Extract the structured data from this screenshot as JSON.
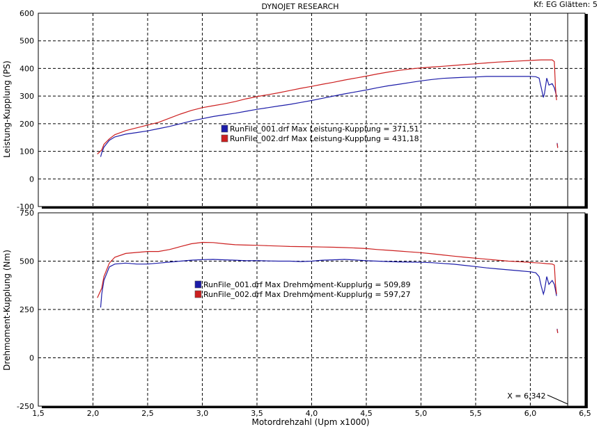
{
  "header": {
    "title": "DYNOJET RESEARCH",
    "settings": "Kf: EG  Glätten: 5"
  },
  "cursor": {
    "label": "X = 6,342",
    "x": 6.342
  },
  "colors": {
    "run1": "#1c1ca8",
    "run2": "#cc1f1f",
    "grid": "#000000",
    "frame": "#000000"
  },
  "chart_data": [
    {
      "type": "line",
      "title": "",
      "xlabel": "",
      "ylabel": "Leistung-Kupplung (PS)",
      "xlim": [
        1.5,
        6.5
      ],
      "ylim": [
        -100,
        600
      ],
      "y_ticks": [
        "600",
        "500",
        "400",
        "300",
        "200",
        "100",
        "0",
        "-100"
      ],
      "y_tick_values": [
        600,
        500,
        400,
        300,
        200,
        100,
        0,
        -100
      ],
      "grid": true,
      "legend": [
        "RunFile_001.drf Max Leistung-Kupplung = 371,51",
        "RunFile_002.drf Max Leistung-Kupplung = 431,18"
      ],
      "series": [
        {
          "name": "RunFile_001.drf",
          "x": [
            2.07,
            2.08,
            2.1,
            2.15,
            2.2,
            2.3,
            2.4,
            2.5,
            2.6,
            2.7,
            2.8,
            2.9,
            3.0,
            3.1,
            3.2,
            3.3,
            3.4,
            3.5,
            3.6,
            3.7,
            3.8,
            3.9,
            4.0,
            4.1,
            4.2,
            4.3,
            4.4,
            4.5,
            4.6,
            4.7,
            4.8,
            4.9,
            5.0,
            5.1,
            5.2,
            5.3,
            5.4,
            5.5,
            5.6,
            5.7,
            5.8,
            5.9,
            6.0,
            6.05,
            6.08,
            6.1,
            6.12,
            6.13,
            6.15,
            6.17,
            6.2,
            6.22,
            6.24
          ],
          "y": [
            80,
            95,
            115,
            140,
            152,
            162,
            168,
            174,
            182,
            190,
            200,
            210,
            218,
            226,
            232,
            238,
            245,
            252,
            258,
            264,
            270,
            277,
            284,
            292,
            300,
            308,
            315,
            322,
            330,
            337,
            343,
            349,
            355,
            360,
            364,
            366,
            368,
            369,
            371,
            371,
            371,
            371,
            371,
            370,
            365,
            330,
            295,
            310,
            365,
            340,
            345,
            330,
            300
          ],
          "extra_x": [
            6.245,
            6.25
          ],
          "extra_y": [
            130,
            115
          ]
        },
        {
          "name": "RunFile_002.drf",
          "x": [
            2.04,
            2.08,
            2.1,
            2.15,
            2.2,
            2.3,
            2.4,
            2.5,
            2.6,
            2.7,
            2.8,
            2.9,
            3.0,
            3.1,
            3.2,
            3.3,
            3.4,
            3.5,
            3.6,
            3.7,
            3.8,
            3.9,
            4.0,
            4.1,
            4.2,
            4.3,
            4.4,
            4.5,
            4.6,
            4.7,
            4.8,
            4.9,
            5.0,
            5.1,
            5.2,
            5.3,
            5.4,
            5.5,
            5.6,
            5.7,
            5.8,
            5.9,
            6.0,
            6.1,
            6.15,
            6.2,
            6.22,
            6.23,
            6.24
          ],
          "y": [
            90,
            105,
            125,
            145,
            160,
            175,
            185,
            195,
            205,
            220,
            235,
            248,
            258,
            265,
            272,
            280,
            290,
            298,
            305,
            312,
            320,
            328,
            335,
            343,
            350,
            358,
            365,
            372,
            380,
            387,
            393,
            398,
            402,
            405,
            408,
            411,
            414,
            417,
            420,
            423,
            425,
            427,
            429,
            431,
            431,
            431,
            425,
            330,
            285
          ],
          "extra_x": [
            6.245,
            6.25
          ],
          "extra_y": [
            128,
            112
          ]
        }
      ]
    },
    {
      "type": "line",
      "title": "",
      "xlabel": "Motordrehzahl (Upm x1000)",
      "ylabel": "Drehmoment-Kupplung (Nm)",
      "xlim": [
        1.5,
        6.5
      ],
      "ylim": [
        -250,
        750
      ],
      "x_ticks": [
        "1,5",
        "2,0",
        "2,5",
        "3,0",
        "3,5",
        "4,0",
        "4,5",
        "5,0",
        "5,5",
        "6,0",
        "6,5"
      ],
      "x_tick_values": [
        1.5,
        2.0,
        2.5,
        3.0,
        3.5,
        4.0,
        4.5,
        5.0,
        5.5,
        6.0,
        6.5
      ],
      "y_ticks": [
        "750",
        "500",
        "250",
        "0",
        "-250"
      ],
      "y_tick_values": [
        750,
        500,
        250,
        0,
        -250
      ],
      "grid": true,
      "legend": [
        "RunFile_001.drf Max Drehmoment-Kupplung = 509,89",
        "RunFile_002.drf Max Drehmoment-Kupplung = 597,27"
      ],
      "series": [
        {
          "name": "RunFile_001.drf",
          "x": [
            2.07,
            2.08,
            2.1,
            2.15,
            2.2,
            2.3,
            2.4,
            2.5,
            2.6,
            2.7,
            2.8,
            2.9,
            3.0,
            3.1,
            3.2,
            3.3,
            3.4,
            3.5,
            3.6,
            3.7,
            3.8,
            3.9,
            4.0,
            4.1,
            4.2,
            4.3,
            4.4,
            4.5,
            4.6,
            4.7,
            4.8,
            4.9,
            5.0,
            5.1,
            5.2,
            5.3,
            5.4,
            5.5,
            5.6,
            5.7,
            5.8,
            5.9,
            6.0,
            6.05,
            6.08,
            6.1,
            6.12,
            6.13,
            6.15,
            6.17,
            6.2,
            6.22,
            6.24
          ],
          "y": [
            260,
            330,
            400,
            470,
            485,
            490,
            485,
            485,
            490,
            495,
            500,
            505,
            508,
            509,
            507,
            505,
            502,
            503,
            501,
            500,
            500,
            498,
            500,
            505,
            507,
            509,
            506,
            502,
            500,
            498,
            496,
            495,
            494,
            492,
            488,
            484,
            478,
            472,
            465,
            460,
            455,
            450,
            445,
            440,
            420,
            370,
            330,
            350,
            420,
            380,
            400,
            380,
            320
          ],
          "extra_x": [
            6.245,
            6.25
          ],
          "extra_y": [
            150,
            130
          ]
        },
        {
          "name": "RunFile_002.drf",
          "x": [
            2.04,
            2.08,
            2.1,
            2.15,
            2.2,
            2.3,
            2.4,
            2.5,
            2.6,
            2.7,
            2.8,
            2.9,
            3.0,
            3.1,
            3.2,
            3.3,
            3.4,
            3.5,
            3.6,
            3.7,
            3.8,
            3.9,
            4.0,
            4.1,
            4.2,
            4.3,
            4.4,
            4.5,
            4.6,
            4.7,
            4.8,
            4.9,
            5.0,
            5.1,
            5.2,
            5.3,
            5.4,
            5.5,
            5.6,
            5.7,
            5.8,
            5.9,
            6.0,
            6.1,
            6.15,
            6.2,
            6.22,
            6.23,
            6.24
          ],
          "y": [
            310,
            360,
            420,
            490,
            520,
            540,
            545,
            550,
            550,
            560,
            575,
            590,
            597,
            596,
            590,
            585,
            583,
            582,
            580,
            578,
            576,
            575,
            574,
            573,
            572,
            570,
            568,
            565,
            560,
            556,
            552,
            548,
            544,
            538,
            532,
            526,
            520,
            515,
            510,
            505,
            500,
            497,
            493,
            490,
            487,
            485,
            480,
            380,
            330
          ],
          "extra_x": [
            6.245,
            6.25
          ],
          "extra_y": [
            148,
            128
          ]
        }
      ]
    }
  ]
}
